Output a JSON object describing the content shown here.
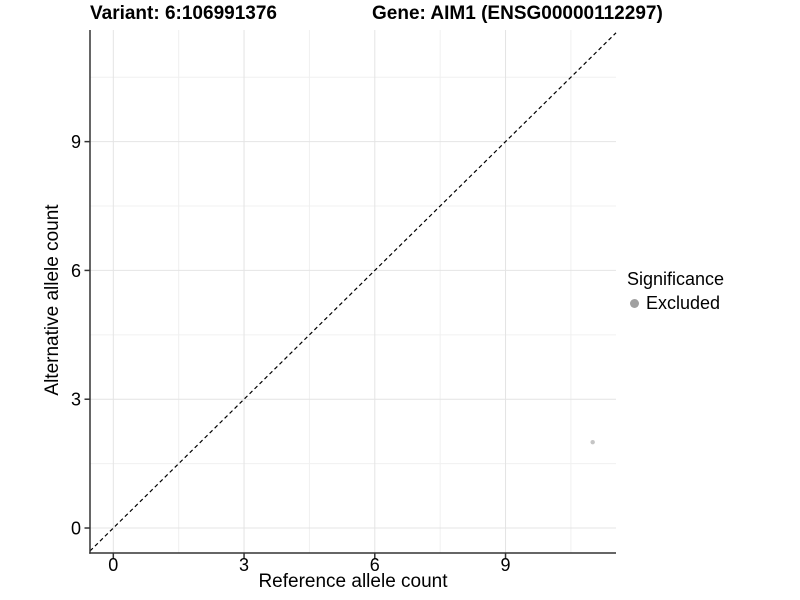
{
  "titles": {
    "variant": "Variant: 6:106991376",
    "gene": "Gene: AIM1 (ENSG00000112297)"
  },
  "chart_data": {
    "type": "scatter",
    "title_left": "Variant: 6:106991376",
    "title_right": "Gene: AIM1 (ENSG00000112297)",
    "xlabel": "Reference allele count",
    "ylabel": "Alternative allele count",
    "xlim": [
      -0.535,
      11.535
    ],
    "ylim": [
      -0.582,
      11.6
    ],
    "x_ticks": [
      0,
      3,
      6,
      9
    ],
    "y_ticks": [
      0,
      3,
      6,
      9
    ],
    "x_minor_gridlines": [
      1.5,
      4.5,
      7.5,
      10.5
    ],
    "y_minor_gridlines": [
      1.5,
      4.5,
      7.5,
      10.5
    ],
    "grid": true,
    "identity_line": {
      "equation": "y = x",
      "style": "dashed",
      "color": "#000000"
    },
    "series": [
      {
        "name": "Excluded",
        "color": "#c5c5c5",
        "points": [
          {
            "x": 11,
            "y": 2
          }
        ]
      }
    ],
    "legend": {
      "position": "right",
      "title": "Significance",
      "items": [
        {
          "label": "Excluded",
          "color": "#a0a0a0"
        }
      ]
    },
    "colors": {
      "background": "#ffffff",
      "grid_major": "#e4e4e4",
      "grid_minor": "#f0f0f0",
      "axis_line": "#333333",
      "tick_mark": "#333333",
      "tick_label": "#000000",
      "identity_line": "#000000",
      "point": "#c5c5c5",
      "legend_point": "#a0a0a0"
    }
  }
}
